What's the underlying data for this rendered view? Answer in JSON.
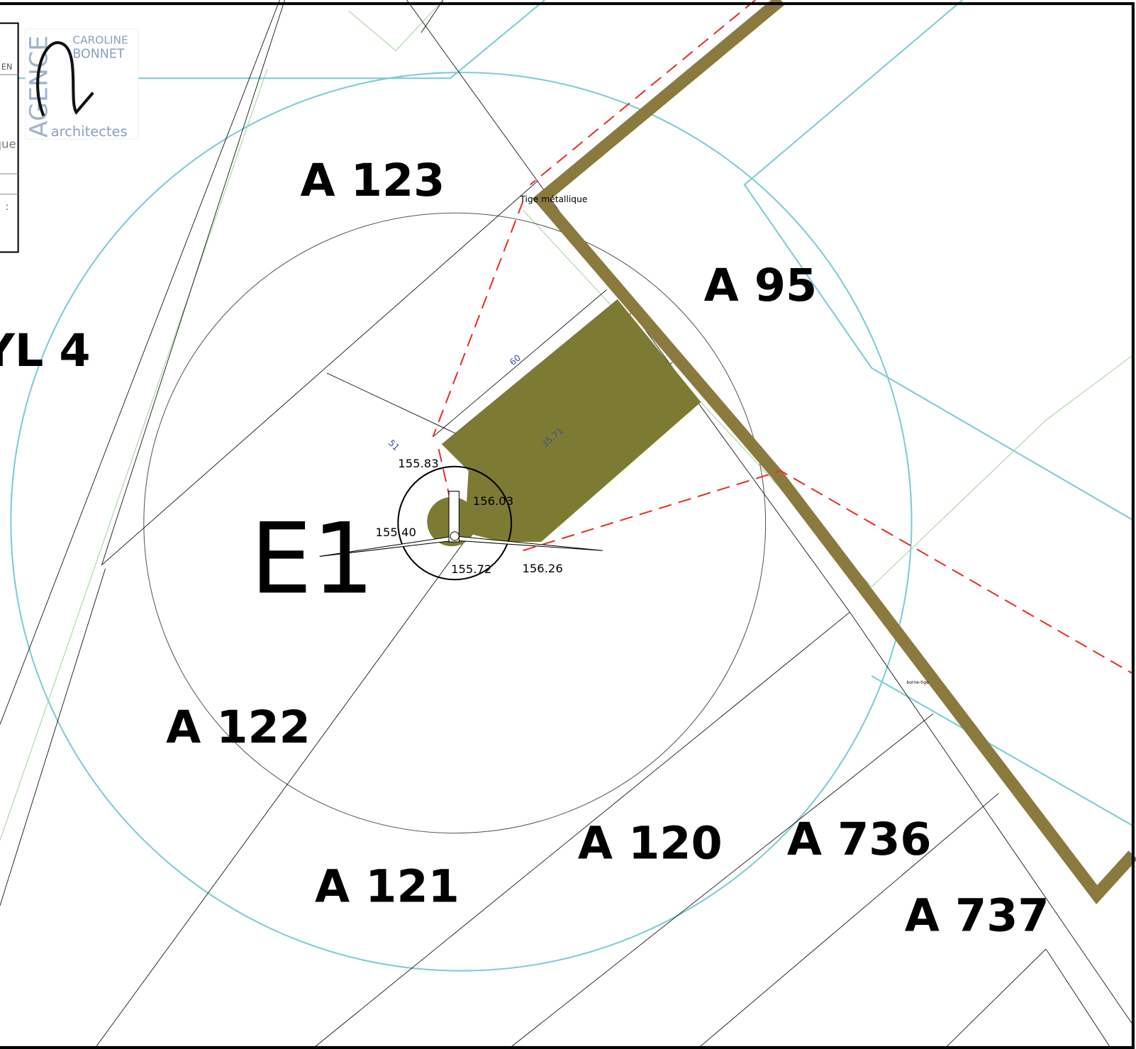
{
  "title_block": {
    "fragments": [
      "EN",
      "que",
      ":"
    ]
  },
  "logo": {
    "vertical": "AGENCE",
    "name_1": "CAROLINE",
    "name_2": "BONNET",
    "subtitle": "architectes"
  },
  "turbine": {
    "label": "E1"
  },
  "parcels": [
    "A 123",
    "A 95",
    "YL 4",
    "A 122",
    "A 121",
    "A 120",
    "A 736",
    "A 737"
  ],
  "elevations": [
    "155.83",
    "156.03",
    "155.40",
    "155.72",
    "156.26"
  ],
  "annotations": {
    "rod": "Tige métallique",
    "marker": "borne-tige"
  },
  "dimensions": [
    "60",
    "51",
    "35.71"
  ]
}
